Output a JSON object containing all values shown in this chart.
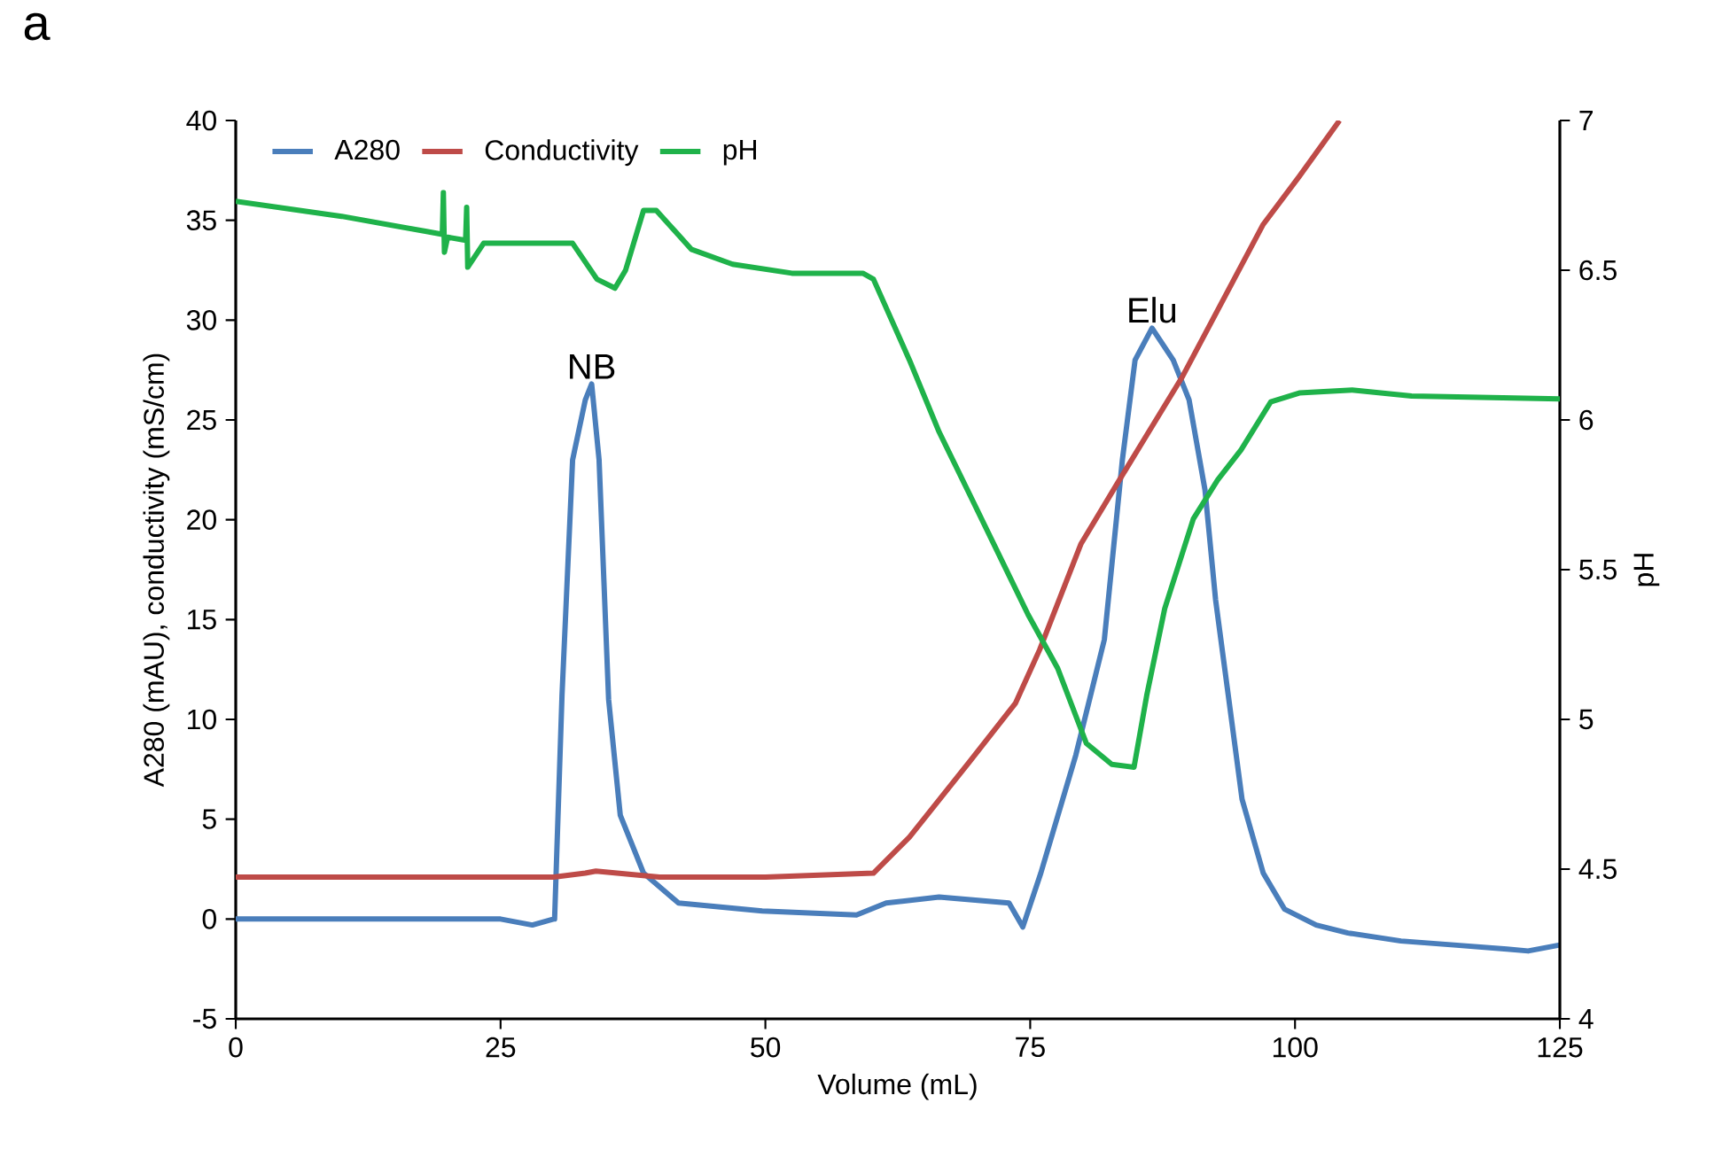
{
  "chart_data": {
    "type": "line",
    "title": "a",
    "xlabel": "Volume (mL)",
    "ylabel": "A280 (mAU), conductivity (mS/cm)",
    "y2label": "pH",
    "xlim": [
      0,
      125
    ],
    "xticks": [
      0,
      25,
      50,
      75,
      100,
      125
    ],
    "ylim": [
      -5,
      40
    ],
    "yticks": [
      -5,
      0,
      5,
      10,
      15,
      20,
      25,
      30,
      35,
      40
    ],
    "y2lim": [
      4,
      7
    ],
    "y2ticks": [
      4,
      4.5,
      5,
      5.5,
      6,
      6.5,
      7
    ],
    "grid": false,
    "legend": "top left",
    "marker": "none",
    "line_style": "solid",
    "annotations": [
      {
        "text": "NB",
        "x": 33.6,
        "y": 26.8
      },
      {
        "text": "Elu",
        "x": 86.5,
        "y": 29.6
      }
    ],
    "series": [
      {
        "name": "A280",
        "color": "#4a7ebb",
        "x": [
          0,
          10,
          20,
          25,
          28,
          30,
          30.1,
          30.8,
          31.8,
          33,
          33.6,
          34.3,
          35.2,
          36.3,
          38.5,
          41.8,
          49.7,
          58.6,
          61.4,
          66.4,
          73,
          74.3,
          76,
          79.3,
          82,
          83.7,
          84.9,
          86.5,
          88.5,
          90,
          91.5,
          92.5,
          93.7,
          95,
          97,
          99,
          102,
          105,
          110,
          115,
          120,
          122,
          125
        ],
        "values": [
          0,
          0,
          0,
          0,
          -0.3,
          0,
          0,
          11.2,
          23,
          26,
          26.8,
          23,
          11,
          5.2,
          2.3,
          0.8,
          0.4,
          0.2,
          0.8,
          1.1,
          0.8,
          -0.4,
          2.3,
          8.2,
          14,
          23,
          28,
          29.6,
          28,
          26,
          21.5,
          16,
          11.2,
          6,
          2.3,
          0.5,
          -0.3,
          -0.7,
          -1.1,
          -1.3,
          -1.5,
          -1.6,
          -1.3
        ]
      },
      {
        "name": "Conductivity",
        "color": "#be4b48",
        "x": [
          0,
          20,
          30,
          33,
          34,
          36,
          40,
          50,
          60.2,
          63.6,
          69.3,
          73.6,
          75.9,
          79.8,
          83.2,
          89.4,
          97,
          100.4,
          104.2
        ],
        "values": [
          2.1,
          2.1,
          2.1,
          2.3,
          2.4,
          2.3,
          2.1,
          2.1,
          2.3,
          4.1,
          7.9,
          10.8,
          13.5,
          18.8,
          21.8,
          27.2,
          34.8,
          37.2,
          40
        ]
      },
      {
        "name": "pH",
        "color": "#1fb24a",
        "axis": "y2",
        "x": [
          0,
          10,
          17.9,
          19.5,
          19.6,
          19.7,
          20,
          21.7,
          21.8,
          21.9,
          23.4,
          31.8,
          34.1,
          35.8,
          36.8,
          38.5,
          39.7,
          43,
          46.9,
          52.5,
          59.2,
          60.2,
          63.6,
          66.4,
          69.3,
          72.6,
          74.8,
          77.6,
          80.3,
          82.7,
          84.8,
          86,
          87.7,
          90.4,
          92.7,
          94.9,
          97.7,
          100.4,
          105.4,
          111,
          125
        ],
        "values": [
          6.73,
          6.68,
          6.63,
          6.62,
          6.76,
          6.56,
          6.61,
          6.6,
          6.71,
          6.51,
          6.59,
          6.59,
          6.47,
          6.44,
          6.5,
          6.7,
          6.7,
          6.57,
          6.52,
          6.49,
          6.49,
          6.47,
          6.2,
          5.96,
          5.75,
          5.51,
          5.35,
          5.17,
          4.92,
          4.85,
          4.84,
          5.08,
          5.37,
          5.67,
          5.8,
          5.9,
          6.06,
          6.09,
          6.1,
          6.08,
          6.07
        ]
      }
    ]
  }
}
